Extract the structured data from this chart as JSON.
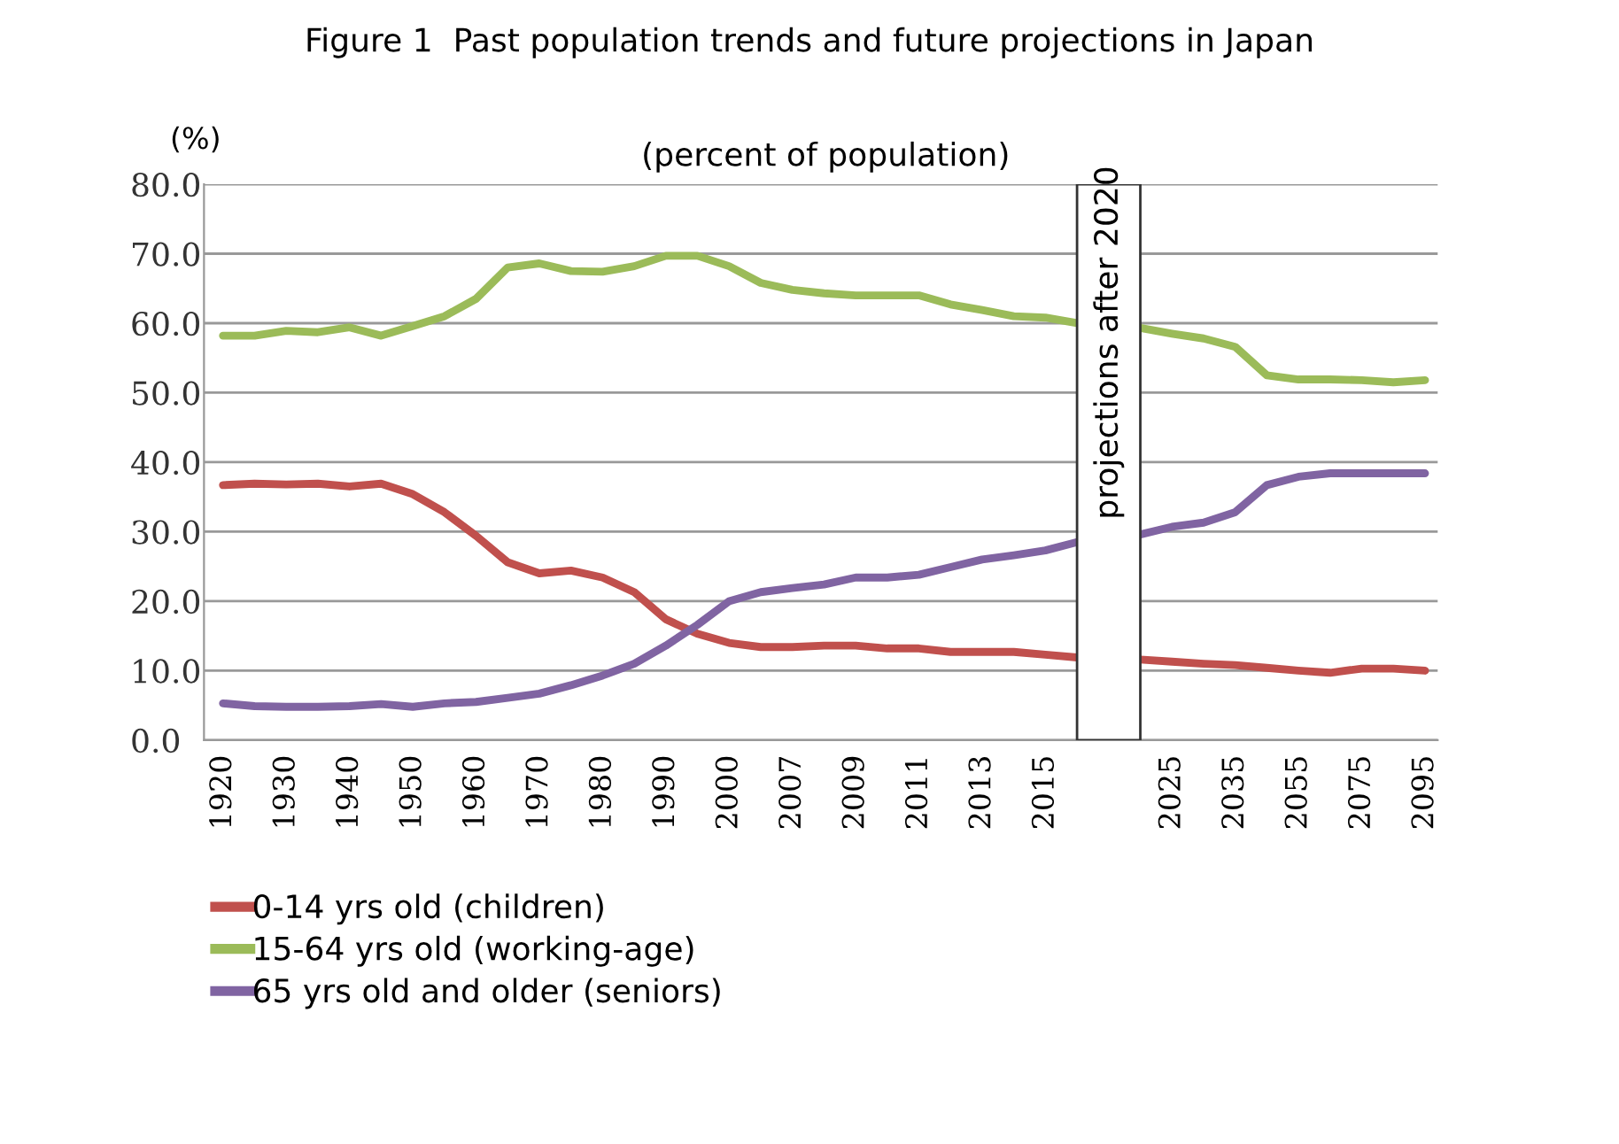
{
  "chart_data": {
    "type": "line",
    "title": "Figure 1  Past population trends and future projections in Japan",
    "subtitle": "(percent of population)",
    "ylabel": "(%)",
    "annotations": [
      "projections after 2020"
    ],
    "categories": [
      "1920",
      null,
      "1930",
      null,
      "1940",
      null,
      "1950",
      null,
      "1960",
      null,
      "1970",
      null,
      "1980",
      null,
      "1990",
      null,
      "2000",
      null,
      "2007",
      null,
      "2009",
      null,
      "2011",
      null,
      "2013",
      null,
      "2015",
      null,
      null,
      null,
      "2025",
      null,
      "2035",
      null,
      "2055",
      null,
      "2075",
      null,
      "2095"
    ],
    "series": [
      {
        "name": "0-14 yrs old (children)",
        "color": "#c0504d",
        "values": [
          36.7,
          36.9,
          36.8,
          36.9,
          36.5,
          36.9,
          35.4,
          32.8,
          29.4,
          25.6,
          24.0,
          24.4,
          23.4,
          21.3,
          17.4,
          15.3,
          14.0,
          13.4,
          13.4,
          13.6,
          13.6,
          13.2,
          13.2,
          12.7,
          12.7,
          12.7,
          12.3,
          11.9,
          null,
          11.6,
          11.3,
          11.0,
          10.8,
          10.4,
          10.0,
          9.7,
          10.3,
          10.3,
          10.0
        ]
      },
      {
        "name": "15-64 yrs old (working-age)",
        "color": "#9bbb59",
        "values": [
          58.2,
          58.2,
          58.9,
          58.7,
          59.4,
          58.2,
          59.6,
          61.0,
          63.5,
          68.0,
          68.6,
          67.5,
          67.4,
          68.2,
          69.7,
          69.7,
          68.2,
          65.8,
          64.8,
          64.3,
          64.0,
          64.0,
          64.0,
          62.7,
          61.9,
          61.0,
          60.8,
          60.0,
          null,
          59.3,
          58.5,
          57.8,
          56.6,
          52.5,
          51.9,
          51.9,
          51.8,
          51.5,
          51.8
        ]
      },
      {
        "name": "65 yrs old and older (seniors)",
        "color": "#8064a2",
        "values": [
          5.3,
          4.9,
          4.8,
          4.8,
          4.9,
          5.2,
          4.8,
          5.3,
          5.5,
          6.1,
          6.7,
          7.9,
          9.3,
          11.0,
          13.6,
          16.6,
          20.0,
          21.3,
          21.9,
          22.4,
          23.4,
          23.4,
          23.8,
          24.9,
          26.0,
          26.6,
          27.3,
          28.5,
          null,
          29.6,
          30.7,
          31.3,
          32.8,
          36.7,
          37.9,
          38.4,
          38.4,
          38.4,
          38.4
        ]
      }
    ],
    "ylim": [
      0,
      80
    ],
    "yticks": [
      {
        "value": 0,
        "label": "0.0"
      },
      {
        "value": 10,
        "label": "10.0"
      },
      {
        "value": 20,
        "label": "20.0"
      },
      {
        "value": 30,
        "label": "30.0"
      },
      {
        "value": 40,
        "label": "40.0"
      },
      {
        "value": 50,
        "label": "50.0"
      },
      {
        "value": 60,
        "label": "60.0"
      },
      {
        "value": 70,
        "label": "70.0"
      },
      {
        "value": 80,
        "label": "80.0"
      }
    ],
    "grid": "y",
    "legend": "bottom",
    "marker": "none",
    "line_style": "solid"
  }
}
